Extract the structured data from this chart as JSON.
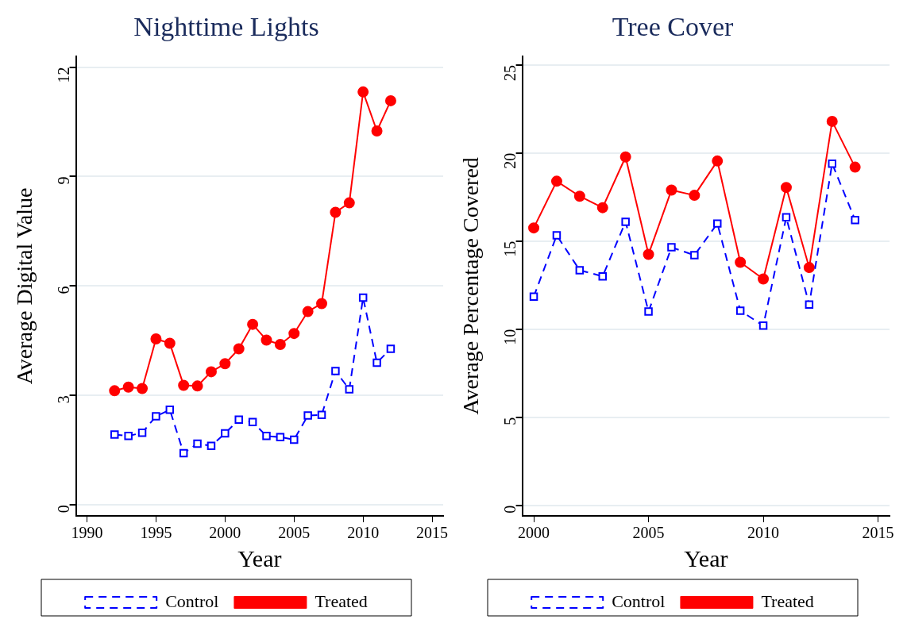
{
  "chart_data": [
    {
      "type": "line",
      "title": "Nighttime Lights",
      "xlabel": "Year",
      "ylabel": "Average Digital Value",
      "x": [
        1992,
        1993,
        1994,
        1995,
        1996,
        1997,
        1998,
        1999,
        2000,
        2001,
        2002,
        2003,
        2004,
        2005,
        2006,
        2007,
        2008,
        2009,
        2010,
        2011,
        2012
      ],
      "xlim": [
        1989.2,
        2015.8
      ],
      "xticks": [
        1990,
        1995,
        2000,
        2005,
        2010,
        2015
      ],
      "ylim": [
        -0.3,
        12.3
      ],
      "yticks": [
        0,
        3,
        6,
        9,
        12
      ],
      "grid": "y",
      "legend": "bottom",
      "series": [
        {
          "name": "Control",
          "color": "#0000ff",
          "marker": "square",
          "line_style": "dashed",
          "values": [
            1.93,
            1.89,
            1.98,
            2.43,
            2.61,
            1.42,
            1.68,
            1.62,
            1.96,
            2.34,
            2.27,
            1.89,
            1.86,
            1.79,
            2.45,
            2.47,
            3.67,
            3.17,
            5.68,
            3.9,
            4.28
          ]
        },
        {
          "name": "Treated",
          "color": "#ff0000",
          "marker": "circle",
          "line_style": "solid",
          "values": [
            3.13,
            3.23,
            3.19,
            4.55,
            4.43,
            3.28,
            3.26,
            3.65,
            3.87,
            4.28,
            4.95,
            4.52,
            4.4,
            4.7,
            5.3,
            5.52,
            8.02,
            8.28,
            11.32,
            10.25,
            11.08
          ]
        }
      ]
    },
    {
      "type": "line",
      "title": "Tree Cover",
      "xlabel": "Year",
      "ylabel": "Average Percentage Covered",
      "x": [
        2000,
        2001,
        2002,
        2003,
        2004,
        2005,
        2006,
        2007,
        2008,
        2009,
        2010,
        2011,
        2012,
        2013,
        2014
      ],
      "xlim": [
        1999.5,
        2015.5
      ],
      "xticks": [
        2000,
        2005,
        2010,
        2015
      ],
      "ylim": [
        -0.6,
        25.5
      ],
      "yticks": [
        0,
        5,
        10,
        15,
        20,
        25
      ],
      "grid": "y",
      "legend": "bottom",
      "series": [
        {
          "name": "Control",
          "color": "#0000ff",
          "marker": "square",
          "line_style": "dashed",
          "values": [
            11.85,
            15.33,
            13.35,
            13.0,
            16.1,
            11.0,
            14.65,
            14.2,
            16.0,
            11.05,
            10.2,
            16.35,
            11.4,
            19.4,
            16.2
          ]
        },
        {
          "name": "Treated",
          "color": "#ff0000",
          "marker": "circle",
          "line_style": "solid",
          "values": [
            15.75,
            18.4,
            17.55,
            16.9,
            19.78,
            14.25,
            17.9,
            17.6,
            19.55,
            13.8,
            12.85,
            18.05,
            13.5,
            21.8,
            19.2
          ]
        }
      ]
    }
  ]
}
